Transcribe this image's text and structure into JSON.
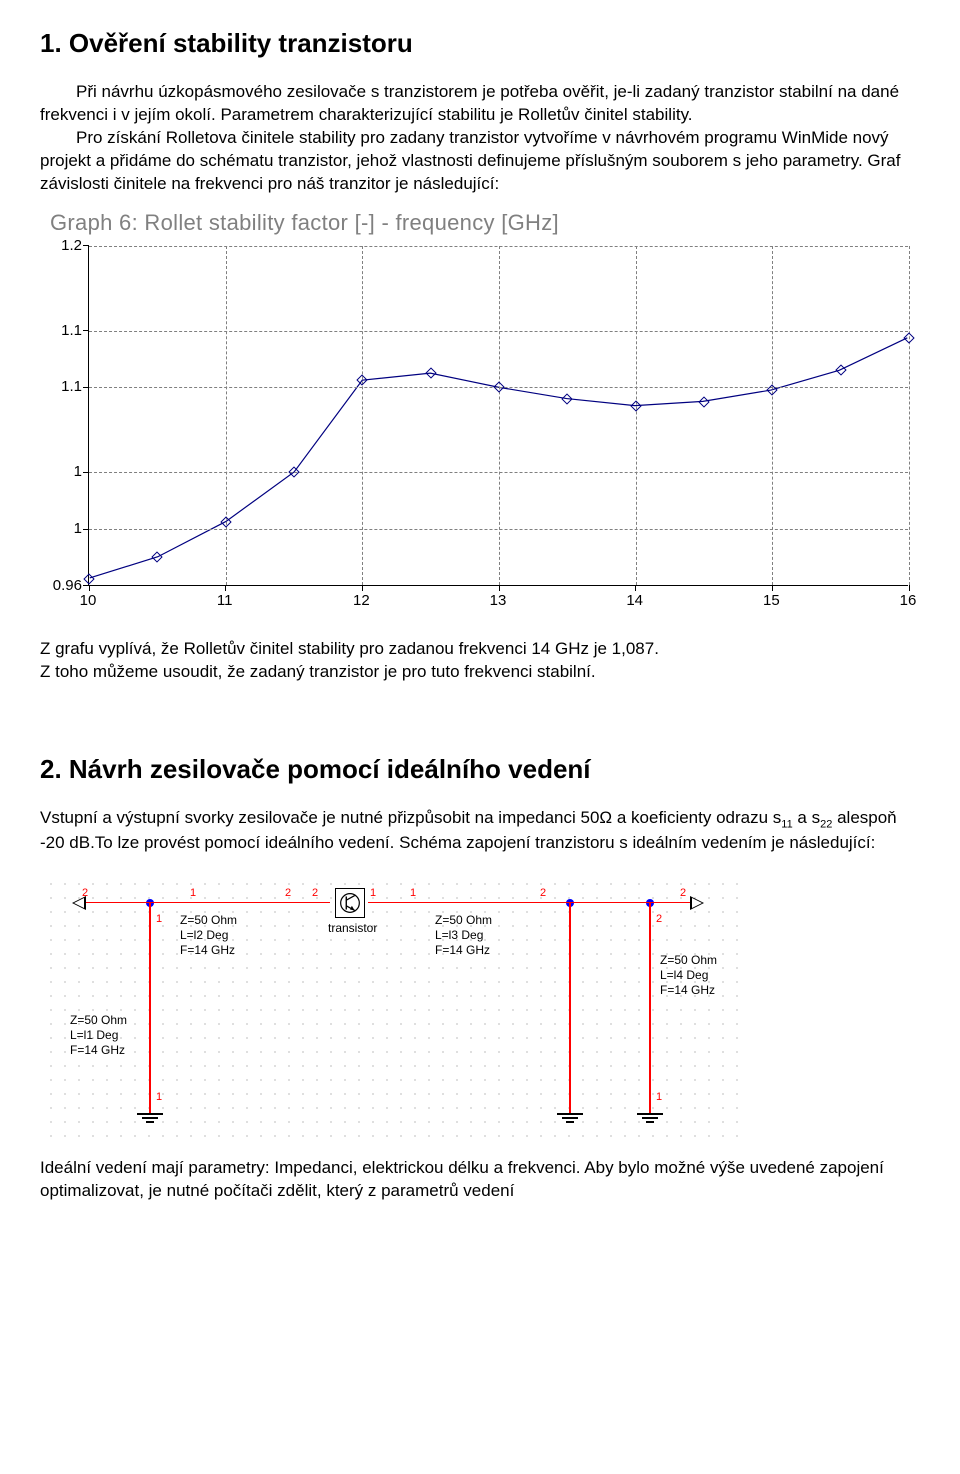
{
  "section1": {
    "title": "1. Ověření stability tranzistoru",
    "p1": "Při návrhu úzkopásmového zesilovače s tranzistorem je potřeba ověřit, je-li zadaný tranzistor stabilní na dané frekvenci i v jejím okolí. Parametrem charakterizující stabilitu je Rolletův činitel stability.",
    "p2": "Pro získání Rolletova činitele stability pro zadany tranzistor vytvoříme v návrhovém programu WinMide nový projekt a přidáme do schématu tranzistor, jehož vlastnosti definujeme příslušným souborem s jeho parametry. Graf závislosti činitele na frekvenci pro náš tranzitor je následující:"
  },
  "chart": {
    "type": "line",
    "title": "Graph 6: Rollet stability factor [-] - frequency [GHz]",
    "title_color": "#808080",
    "title_fontsize": 22,
    "background_color": "#ffffff",
    "axis_color": "#000000",
    "grid_color": "#808080",
    "grid_dashed": true,
    "line_color": "#000080",
    "line_width": 1.2,
    "marker_style": "diamond-open",
    "marker_size": 8,
    "marker_color": "#000080",
    "xlim": [
      10,
      16
    ],
    "ylim": [
      0.96,
      1.2
    ],
    "xticks": [
      10,
      11,
      12,
      13,
      14,
      15,
      16
    ],
    "ytick_labels": [
      "0.96",
      "1",
      "1",
      "1.1",
      "1.1",
      "1.2"
    ],
    "ytick_values": [
      0.96,
      1.0,
      1.04,
      1.1,
      1.14,
      1.2
    ],
    "x": [
      10.0,
      10.5,
      11.0,
      11.5,
      12.0,
      12.5,
      13.0,
      13.5,
      14.0,
      14.5,
      15.0,
      15.5,
      16.0
    ],
    "y": [
      0.965,
      0.98,
      1.005,
      1.04,
      1.105,
      1.11,
      1.1,
      1.092,
      1.087,
      1.09,
      1.098,
      1.112,
      1.135
    ]
  },
  "after_chart1": {
    "line1": "Z grafu vyplívá, že Rolletův činitel stability pro zadanou frekvenci 14 GHz je 1,087.",
    "line2": "Z toho můžeme usoudit, že zadaný tranzistor je pro tuto frekvenci stabilní."
  },
  "section2": {
    "title": "2. Návrh zesilovače pomocí ideálního vedení",
    "p1a": "Vstupní a výstupní svorky zesilovače je nutné přizpůsobit na impedanci 50Ω a koeficienty odrazu s",
    "p1b": " a s",
    "p1c": " alespoň -20 dB.To lze provést pomocí ideálního vedení. Schéma zapojení tranzistoru s ideálním vedením je následující:",
    "s11": "11",
    "s22": "22"
  },
  "schematic": {
    "background_color": "#ffffff",
    "dot_color": "#808080",
    "wire_color": "#ff0000",
    "node_color": "#0000ff",
    "text_color": "#000000",
    "pin_color": "#ff0000",
    "labels": {
      "tl1": "Z=50 Ohm\nL=l1 Deg\nF=14 GHz",
      "tl2": "Z=50 Ohm\nL=l2 Deg\nF=14 GHz",
      "tl3": "Z=50 Ohm\nL=l3 Deg\nF=14 GHz",
      "tl4": "Z=50 Ohm\nL=l4 Deg\nF=14 GHz",
      "transistor": "transistor"
    }
  },
  "after_schematic": {
    "p": "Ideální vedení mají parametry: Impedanci, elektrickou délku a frekvenci. Aby bylo možné výše uvedené zapojení optimalizovat, je nutné počítači zdělit, který z parametrů vedení"
  }
}
